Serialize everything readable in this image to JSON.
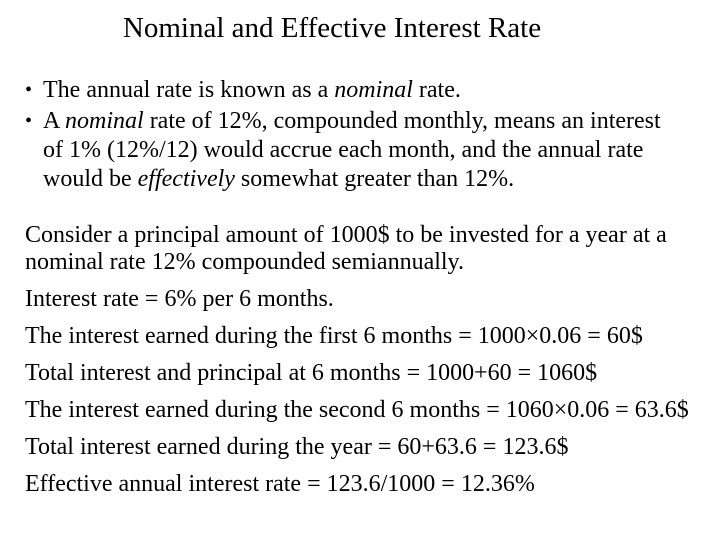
{
  "slide": {
    "title": "Nominal and Effective Interest Rate",
    "bullet_char": "•",
    "bullets": [
      {
        "runs": [
          {
            "t": "The annual rate is known as a "
          },
          {
            "t": "nominal",
            "i": true
          },
          {
            "t": " rate."
          }
        ]
      },
      {
        "runs": [
          {
            "t": "A "
          },
          {
            "t": "nominal",
            "i": true
          },
          {
            "t": " rate of 12%, compounded monthly, means an interest",
            "br": true
          },
          {
            "t": "of 1% (12%/12) would accrue each month, and the annual rate",
            "br": true
          },
          {
            "t": "would be "
          },
          {
            "t": "effectively",
            "i": true
          },
          {
            "t": " somewhat greater than 12%."
          }
        ]
      }
    ],
    "paragraphs": [
      {
        "wrap": true,
        "runs": [
          {
            "t": "Consider a principal amount of 1000$ to be invested for a year at a",
            "br": true
          },
          {
            "t": "nominal rate 12% compounded semiannually."
          }
        ]
      },
      {
        "runs": [
          {
            "t": "Interest rate = 6% per 6 months."
          }
        ]
      },
      {
        "runs": [
          {
            "t": "The interest earned during the first 6 months = 1000×0.06 = 60$"
          }
        ]
      },
      {
        "runs": [
          {
            "t": "Total interest and principal at 6 months = 1000+60 = 1060$"
          }
        ]
      },
      {
        "runs": [
          {
            "t": "The interest earned during the second 6 months = 1060×0.06 = 63.6$"
          }
        ]
      },
      {
        "runs": [
          {
            "t": "Total interest earned during the year = 60+63.6 = 123.6$"
          }
        ]
      },
      {
        "runs": [
          {
            "t": "Effective annual interest rate = 123.6/1000 = 12.36%"
          }
        ]
      }
    ],
    "colors": {
      "background": "#ffffff",
      "text": "#000000"
    }
  }
}
